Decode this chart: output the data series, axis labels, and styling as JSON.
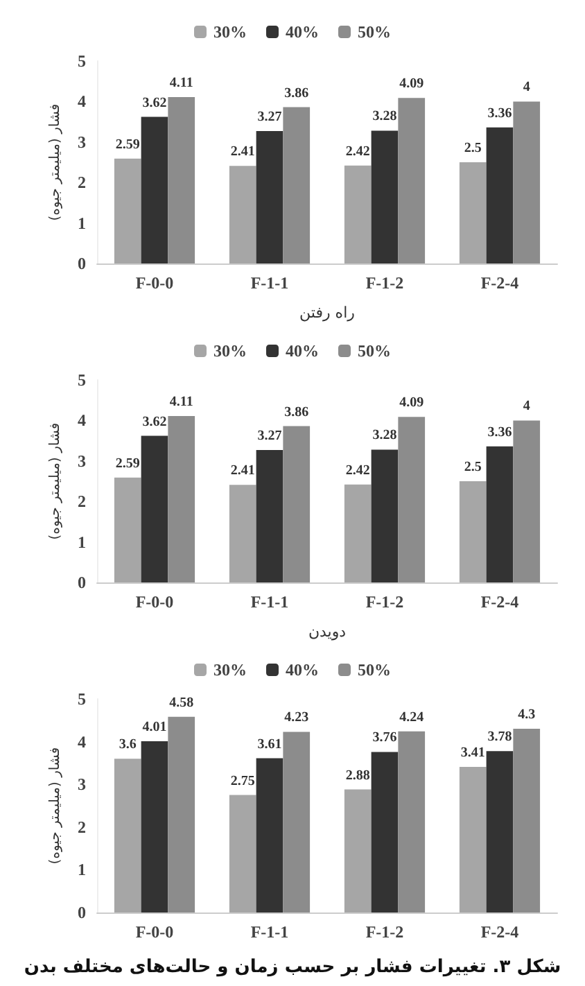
{
  "chart_data": [
    {
      "type": "bar",
      "xlabel": "راه رفتن",
      "ylabel": "فشار (میلیمتر جیوه)",
      "categories": [
        "F-0-0",
        "F-1-1",
        "F-1-2",
        "F-2-4"
      ],
      "ylim": [
        0,
        5
      ],
      "yticks": [
        0,
        1,
        2,
        3,
        4,
        5
      ],
      "grid": false,
      "legend": "top",
      "data_labels": true,
      "series": [
        {
          "name": "30%",
          "color": "#a6a6a6",
          "values": [
            2.59,
            2.41,
            2.42,
            2.5
          ]
        },
        {
          "name": "40%",
          "color": "#333333",
          "values": [
            3.62,
            3.27,
            3.28,
            3.36
          ]
        },
        {
          "name": "50%",
          "color": "#8c8c8c",
          "values": [
            4.11,
            3.86,
            4.09,
            4
          ]
        }
      ]
    },
    {
      "type": "bar",
      "xlabel": "دویدن",
      "ylabel": "فشار (میلیمتر جیوه)",
      "categories": [
        "F-0-0",
        "F-1-1",
        "F-1-2",
        "F-2-4"
      ],
      "ylim": [
        0,
        5
      ],
      "yticks": [
        0,
        1,
        2,
        3,
        4,
        5
      ],
      "grid": false,
      "legend": "top",
      "data_labels": true,
      "series": [
        {
          "name": "30%",
          "color": "#a6a6a6",
          "values": [
            2.59,
            2.41,
            2.42,
            2.5
          ]
        },
        {
          "name": "40%",
          "color": "#333333",
          "values": [
            3.62,
            3.27,
            3.28,
            3.36
          ]
        },
        {
          "name": "50%",
          "color": "#8c8c8c",
          "values": [
            4.11,
            3.86,
            4.09,
            4
          ]
        }
      ]
    },
    {
      "type": "bar",
      "ylabel": "فشار (میلیمتر جیوه)",
      "categories": [
        "F-0-0",
        "F-1-1",
        "F-1-2",
        "F-2-4"
      ],
      "ylim": [
        0,
        5
      ],
      "yticks": [
        0,
        1,
        2,
        3,
        4,
        5
      ],
      "grid": false,
      "legend": "top",
      "data_labels": true,
      "annotations": [
        "شکل ۳. تغییرات فشار بر حسب زمان و حالت‌های مختلف بدن"
      ],
      "series": [
        {
          "name": "30%",
          "color": "#a6a6a6",
          "values": [
            3.6,
            2.75,
            2.88,
            3.41
          ]
        },
        {
          "name": "40%",
          "color": "#333333",
          "values": [
            4.01,
            3.61,
            3.76,
            3.78
          ]
        },
        {
          "name": "50%",
          "color": "#8c8c8c",
          "values": [
            4.58,
            4.23,
            4.24,
            4.3
          ]
        }
      ]
    }
  ]
}
